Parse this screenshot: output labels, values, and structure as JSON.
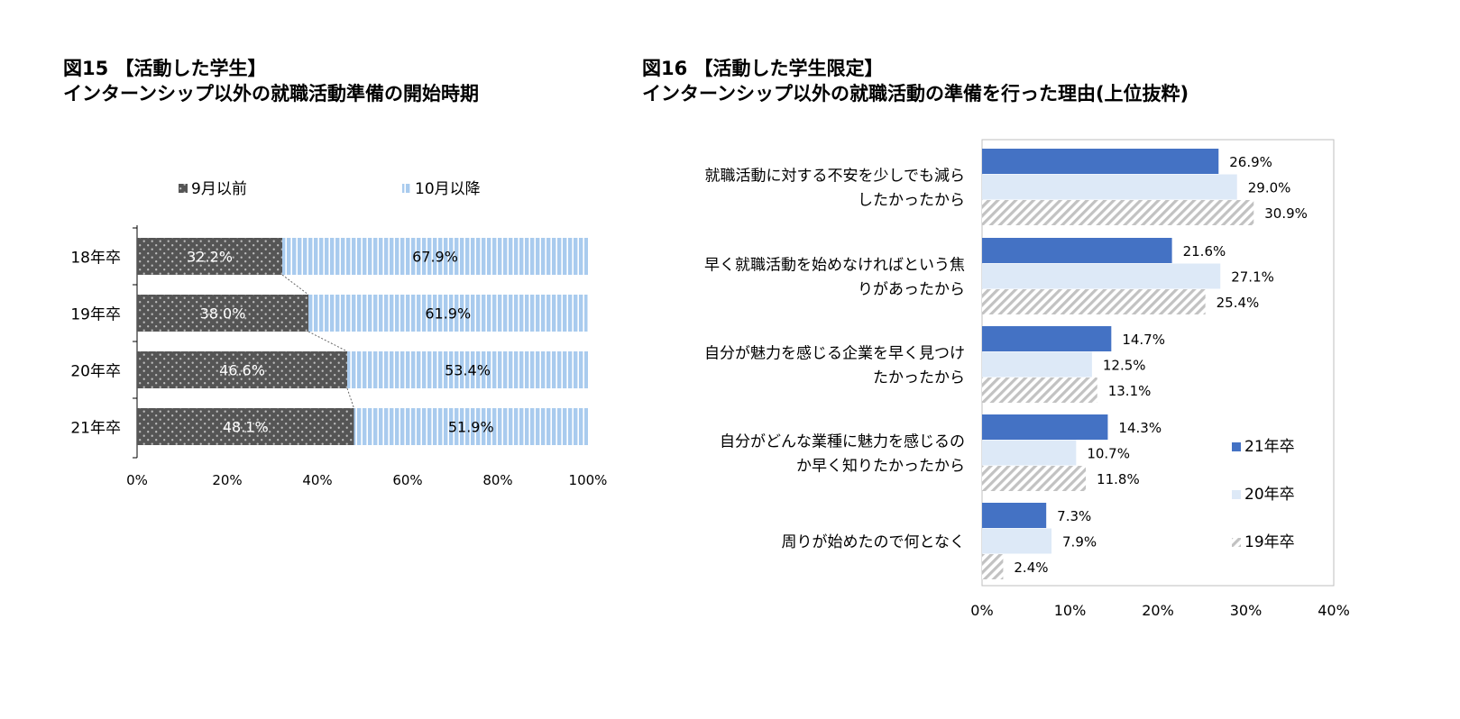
{
  "chart_data": [
    {
      "type": "bar",
      "orientation": "horizontal",
      "stacked": true,
      "percent_stacked": true,
      "title_line1": "図15 【活動した学生】",
      "title_line2": "インターンシップ以外の就職活動準備の開始時期",
      "categories": [
        "18年卒",
        "19年卒",
        "20年卒",
        "21年卒"
      ],
      "series": [
        {
          "name": "9月以前",
          "values": [
            32.2,
            38.0,
            46.6,
            48.1
          ],
          "labels": [
            "32.2%",
            "38.0%",
            "46.6%",
            "48.1%"
          ],
          "color": "#555555",
          "pattern": "dots"
        },
        {
          "name": "10月以降",
          "values": [
            67.9,
            61.9,
            53.4,
            51.9
          ],
          "labels": [
            "67.9%",
            "61.9%",
            "53.4%",
            "51.9%"
          ],
          "color": "#a9cbee",
          "pattern": "vertical-stripes"
        }
      ],
      "xlim": [
        0,
        100
      ],
      "x_ticks": [
        "0%",
        "20%",
        "40%",
        "60%",
        "80%",
        "100%"
      ],
      "legend_position": "top",
      "series_connector_lines": true,
      "grid": false
    },
    {
      "type": "bar",
      "orientation": "horizontal",
      "title_line1": "図16 【活動した学生限定】",
      "title_line2": "インターンシップ以外の就職活動の準備を行った理由(上位抜粋)",
      "categories": [
        [
          "就職活動に対する不安を少しでも減ら",
          "したかったから"
        ],
        [
          "早く就職活動を始めなければという焦",
          "りがあったから"
        ],
        [
          "自分が魅力を感じる企業を早く見つけ",
          "たかったから"
        ],
        [
          "自分がどんな業種に魅力を感じるの",
          "か早く知りたかったから"
        ],
        [
          "周りが始めたので何となく"
        ]
      ],
      "series": [
        {
          "name": "21年卒",
          "values": [
            26.9,
            21.6,
            14.7,
            14.3,
            7.3
          ],
          "labels": [
            "26.9%",
            "21.6%",
            "14.7%",
            "14.3%",
            "7.3%"
          ],
          "color": "#4472c4",
          "pattern": "solid"
        },
        {
          "name": "20年卒",
          "values": [
            29.0,
            27.1,
            12.5,
            10.7,
            7.9
          ],
          "labels": [
            "29.0%",
            "27.1%",
            "12.5%",
            "10.7%",
            "7.9%"
          ],
          "color": "#dde9f7",
          "pattern": "solid"
        },
        {
          "name": "19年卒",
          "values": [
            30.9,
            25.4,
            13.1,
            11.8,
            2.4
          ],
          "labels": [
            "30.9%",
            "25.4%",
            "13.1%",
            "11.8%",
            "2.4%"
          ],
          "color": "#bfbfbf",
          "pattern": "diagonal-hatch"
        }
      ],
      "xlim": [
        0,
        40
      ],
      "x_ticks": [
        "0%",
        "10%",
        "20%",
        "30%",
        "40%"
      ],
      "legend_position": "right",
      "grid": false
    }
  ]
}
